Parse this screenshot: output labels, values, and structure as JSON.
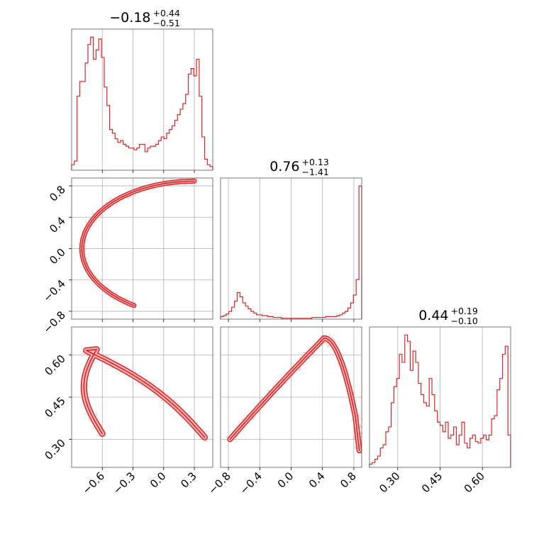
{
  "chart_data": {
    "type": "corner",
    "color": "#d62728",
    "panels": [
      {
        "id": "hist-0",
        "type": "histogram",
        "grid": true,
        "title": {
          "median": "−0.18",
          "plus": "+0.44",
          "minus": "−0.51"
        },
        "bins": {
          "x0": -0.9,
          "x1": 0.48,
          "values": [
            3,
            5,
            40,
            48,
            48,
            58,
            68,
            72,
            60,
            65,
            71,
            61,
            45,
            35,
            22,
            20,
            17,
            15,
            16,
            14,
            13,
            12,
            12,
            11,
            12,
            14,
            14,
            10,
            12,
            13,
            13,
            14,
            16,
            18,
            17,
            20,
            22,
            24,
            27,
            30,
            33,
            36,
            41,
            52,
            55,
            51,
            60,
            40,
            18,
            6,
            3,
            2
          ]
        }
      },
      {
        "id": "hist-1",
        "type": "histogram",
        "grid": true,
        "title": {
          "median": "0.76",
          "plus": "+0.13",
          "minus": "−1.41"
        },
        "bins": {
          "x0": -0.9,
          "x1": 0.9,
          "values": [
            3,
            4,
            6,
            9,
            14,
            21,
            31,
            26,
            19,
            15,
            12,
            9,
            7,
            5,
            5,
            4,
            4,
            3,
            3,
            2,
            2,
            2,
            1,
            1,
            1,
            1,
            1,
            1,
            1,
            1,
            1,
            1,
            1,
            2,
            2,
            2,
            2,
            2,
            3,
            3,
            3,
            3,
            4,
            5,
            7,
            9,
            13,
            19,
            28,
            46,
            155
          ]
        }
      },
      {
        "id": "hist-2",
        "type": "histogram",
        "grid": true,
        "title": {
          "median": "0.44",
          "plus": "+0.19",
          "minus": "−0.10"
        },
        "bins": {
          "x0": 0.2,
          "x1": 0.7,
          "values": [
            2,
            3,
            5,
            7,
            12,
            14,
            22,
            25,
            40,
            50,
            55,
            70,
            65,
            82,
            78,
            60,
            72,
            65,
            52,
            45,
            40,
            38,
            55,
            45,
            35,
            28,
            26,
            22,
            28,
            18,
            20,
            25,
            14,
            20,
            28,
            15,
            12,
            18,
            20,
            16,
            15,
            18,
            20,
            17,
            20,
            30,
            32,
            48,
            55,
            70,
            75,
            20
          ]
        }
      },
      {
        "id": "scatter-10",
        "type": "2d-density",
        "xlim": [
          -0.9,
          0.48
        ],
        "ylim": [
          -0.9,
          0.9
        ],
        "grid": true
      },
      {
        "id": "scatter-20",
        "type": "2d-density",
        "xlim": [
          -0.9,
          0.48
        ],
        "ylim": [
          0.2,
          0.7
        ],
        "grid": true
      },
      {
        "id": "scatter-21",
        "type": "2d-density",
        "xlim": [
          -0.9,
          0.9
        ],
        "ylim": [
          0.2,
          0.7
        ],
        "grid": true
      }
    ],
    "axes": {
      "x0": {
        "ticks": [
          -0.6,
          -0.3,
          0.0,
          0.3
        ],
        "labels": [
          "−0.6",
          "−0.3",
          "0.0",
          "0.3"
        ]
      },
      "x1": {
        "ticks": [
          -0.8,
          -0.4,
          0.0,
          0.4,
          0.8
        ],
        "labels": [
          "−0.8",
          "−0.4",
          "0.0",
          "0.4",
          "0.8"
        ]
      },
      "x2": {
        "ticks": [
          0.3,
          0.45,
          0.6
        ],
        "labels": [
          "0.30",
          "0.45",
          "0.60"
        ]
      },
      "y1": {
        "ticks": [
          0.8,
          0.4,
          0.0,
          -0.4,
          -0.8
        ],
        "labels": [
          "0.8",
          "0.4",
          "0.0",
          "−0.4",
          "−0.8"
        ]
      },
      "y2": {
        "ticks": [
          0.6,
          0.45,
          0.3
        ],
        "labels": [
          "0.60",
          "0.45",
          "0.30"
        ]
      }
    }
  }
}
